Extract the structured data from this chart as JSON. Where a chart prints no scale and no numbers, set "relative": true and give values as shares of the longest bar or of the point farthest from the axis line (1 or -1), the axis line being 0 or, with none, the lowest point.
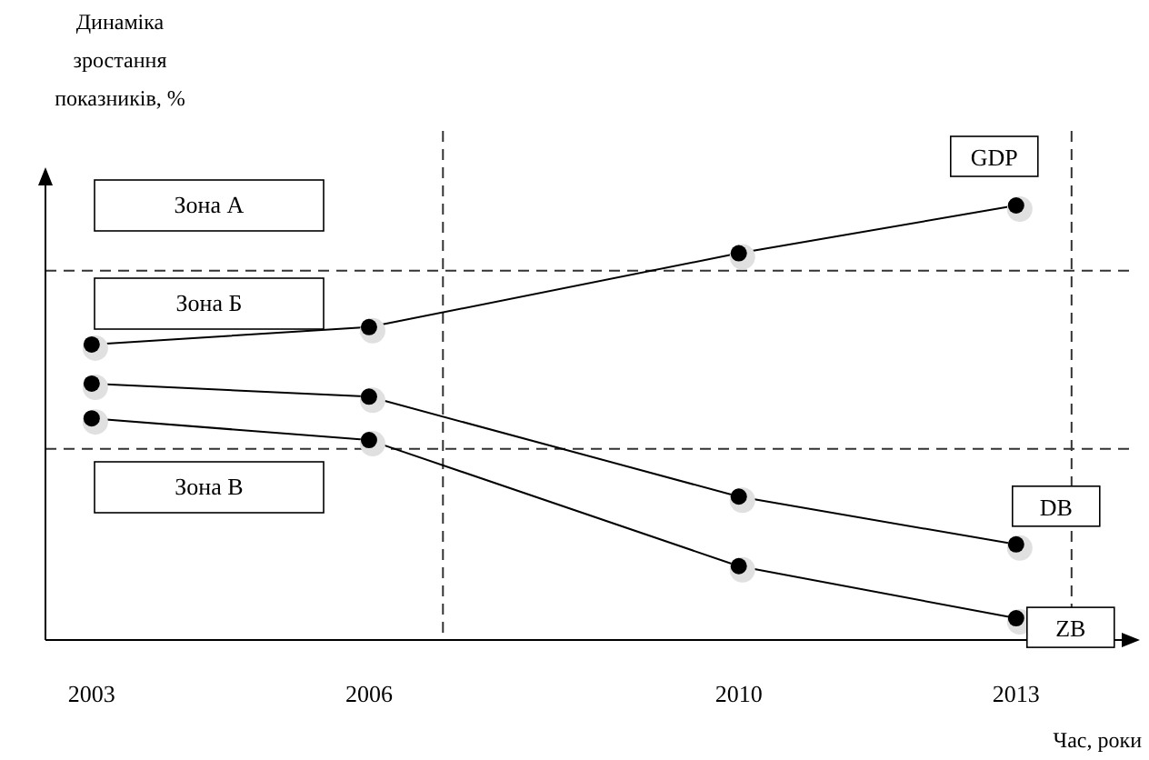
{
  "chart_data": {
    "type": "line",
    "relative": true,
    "ylabel": "Динаміка зростання показників, %",
    "xlabel": "Час, роки",
    "x": [
      2003,
      2006,
      2010,
      2013
    ],
    "xlim": [
      2002.5,
      2014.3
    ],
    "xticks": [
      2003,
      2006,
      2010,
      2013
    ],
    "series": [
      {
        "name": "GDP",
        "color": "#000000",
        "values": [
          0.68,
          0.72,
          0.89,
          1
        ]
      },
      {
        "name": "DB",
        "color": "#000000",
        "values": [
          0.59,
          0.56,
          0.33,
          0.22
        ]
      },
      {
        "name": "ZB",
        "color": "#000000",
        "values": [
          0.51,
          0.46,
          0.17,
          0.05
        ]
      }
    ],
    "marker": "circle",
    "line_style": "solid",
    "grid": false,
    "ref_lines": [
      {
        "axis": "y",
        "value": 0.85,
        "line_style": "dashed"
      },
      {
        "axis": "y",
        "value": 0.44,
        "line_style": "dashed"
      },
      {
        "axis": "x",
        "value": 2006.8,
        "line_style": "dashed"
      },
      {
        "axis": "x",
        "value": 2013.6,
        "line_style": "dashed"
      }
    ],
    "annotations": [
      "Зона А",
      "Зона Б",
      "Зона В"
    ]
  }
}
